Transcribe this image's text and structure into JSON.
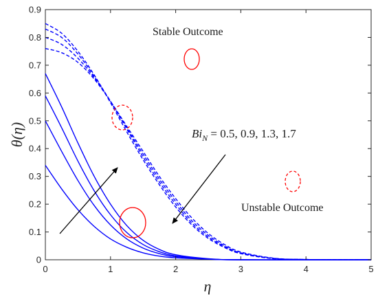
{
  "chart_data": {
    "type": "line",
    "xlabel": "η",
    "ylabel": "θ(η)",
    "xlim": [
      0,
      5
    ],
    "ylim": [
      0,
      0.9
    ],
    "x_ticks": [
      "0",
      "1",
      "2",
      "3",
      "4",
      "5"
    ],
    "y_ticks": [
      "0",
      "0.1",
      "0.2",
      "0.3",
      "0.4",
      "0.5",
      "0.6",
      "0.7",
      "0.8",
      "0.9"
    ],
    "grid": false,
    "line_color": "#0000ff",
    "marker_color": "#ff0000",
    "annotations": {
      "stable": "Stable Outcome",
      "unstable": "Unstable Outcome",
      "param_prefix": "Bi",
      "param_sub": "N",
      "param_values": " = 0.5, 0.9, 1.3, 1.7"
    },
    "series": [
      {
        "style": "solid",
        "values": [
          [
            0,
            0.34
          ],
          [
            0.25,
            0.255
          ],
          [
            0.5,
            0.18
          ],
          [
            0.75,
            0.12
          ],
          [
            1,
            0.075
          ],
          [
            1.25,
            0.045
          ],
          [
            1.5,
            0.025
          ],
          [
            1.75,
            0.013
          ],
          [
            2,
            0.007
          ],
          [
            2.5,
            0.002
          ],
          [
            3,
            0
          ],
          [
            5,
            0
          ]
        ]
      },
      {
        "style": "solid",
        "values": [
          [
            0,
            0.5
          ],
          [
            0.25,
            0.39
          ],
          [
            0.5,
            0.285
          ],
          [
            0.75,
            0.195
          ],
          [
            1,
            0.125
          ],
          [
            1.25,
            0.075
          ],
          [
            1.5,
            0.042
          ],
          [
            1.75,
            0.022
          ],
          [
            2,
            0.011
          ],
          [
            2.5,
            0.003
          ],
          [
            3,
            0
          ],
          [
            5,
            0
          ]
        ]
      },
      {
        "style": "solid",
        "values": [
          [
            0,
            0.59
          ],
          [
            0.25,
            0.475
          ],
          [
            0.5,
            0.355
          ],
          [
            0.75,
            0.248
          ],
          [
            1,
            0.162
          ],
          [
            1.25,
            0.098
          ],
          [
            1.5,
            0.055
          ],
          [
            1.75,
            0.029
          ],
          [
            2,
            0.014
          ],
          [
            2.5,
            0.003
          ],
          [
            3,
            0
          ],
          [
            5,
            0
          ]
        ]
      },
      {
        "style": "solid",
        "values": [
          [
            0,
            0.67
          ],
          [
            0.25,
            0.55
          ],
          [
            0.5,
            0.42
          ],
          [
            0.75,
            0.3
          ],
          [
            1,
            0.2
          ],
          [
            1.25,
            0.123
          ],
          [
            1.5,
            0.07
          ],
          [
            1.75,
            0.037
          ],
          [
            2,
            0.018
          ],
          [
            2.5,
            0.004
          ],
          [
            3,
            0
          ],
          [
            5,
            0
          ]
        ]
      },
      {
        "style": "dashed",
        "values": [
          [
            0,
            0.76
          ],
          [
            0.25,
            0.745
          ],
          [
            0.5,
            0.71
          ],
          [
            0.75,
            0.65
          ],
          [
            1,
            0.57
          ],
          [
            1.25,
            0.48
          ],
          [
            1.5,
            0.39
          ],
          [
            1.75,
            0.3
          ],
          [
            2,
            0.22
          ],
          [
            2.25,
            0.15
          ],
          [
            2.5,
            0.095
          ],
          [
            2.75,
            0.055
          ],
          [
            3,
            0.028
          ],
          [
            3.5,
            0.006
          ],
          [
            4,
            0.001
          ],
          [
            5,
            0
          ]
        ]
      },
      {
        "style": "dashed",
        "values": [
          [
            0,
            0.8
          ],
          [
            0.25,
            0.775
          ],
          [
            0.5,
            0.725
          ],
          [
            0.75,
            0.655
          ],
          [
            1,
            0.57
          ],
          [
            1.25,
            0.475
          ],
          [
            1.5,
            0.38
          ],
          [
            1.75,
            0.29
          ],
          [
            2,
            0.21
          ],
          [
            2.25,
            0.14
          ],
          [
            2.5,
            0.088
          ],
          [
            2.75,
            0.05
          ],
          [
            3,
            0.025
          ],
          [
            3.5,
            0.005
          ],
          [
            4,
            0.001
          ],
          [
            5,
            0
          ]
        ]
      },
      {
        "style": "dashed",
        "values": [
          [
            0,
            0.83
          ],
          [
            0.25,
            0.8
          ],
          [
            0.5,
            0.74
          ],
          [
            0.75,
            0.66
          ],
          [
            1,
            0.57
          ],
          [
            1.25,
            0.47
          ],
          [
            1.5,
            0.37
          ],
          [
            1.75,
            0.28
          ],
          [
            2,
            0.2
          ],
          [
            2.25,
            0.132
          ],
          [
            2.5,
            0.082
          ],
          [
            2.75,
            0.047
          ],
          [
            3,
            0.024
          ],
          [
            3.5,
            0.005
          ],
          [
            4,
            0.001
          ],
          [
            5,
            0
          ]
        ]
      },
      {
        "style": "dashed",
        "values": [
          [
            0,
            0.85
          ],
          [
            0.25,
            0.815
          ],
          [
            0.5,
            0.75
          ],
          [
            0.75,
            0.665
          ],
          [
            1,
            0.565
          ],
          [
            1.25,
            0.46
          ],
          [
            1.5,
            0.36
          ],
          [
            1.75,
            0.27
          ],
          [
            2,
            0.19
          ],
          [
            2.25,
            0.125
          ],
          [
            2.5,
            0.077
          ],
          [
            2.75,
            0.044
          ],
          [
            3,
            0.022
          ],
          [
            3.5,
            0.004
          ],
          [
            4,
            0.001
          ],
          [
            5,
            0
          ]
        ]
      }
    ]
  }
}
